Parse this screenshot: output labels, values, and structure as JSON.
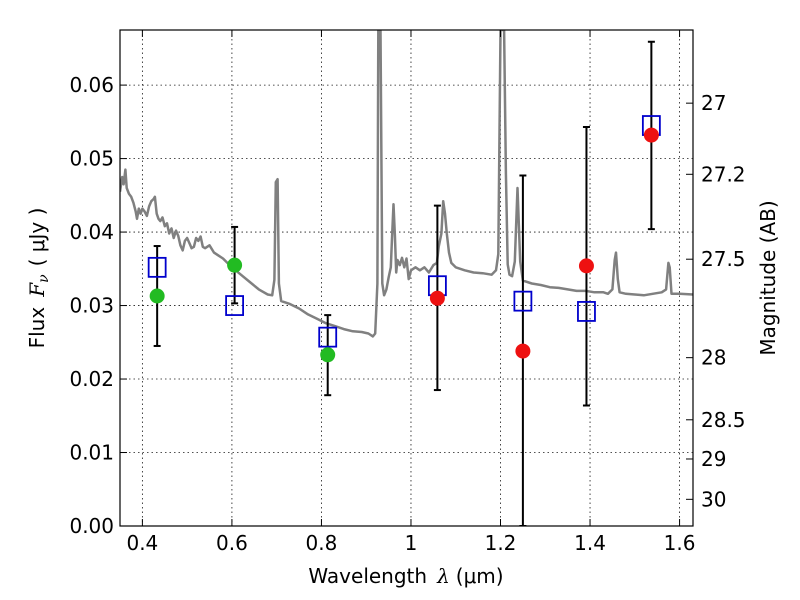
{
  "chart_data": {
    "type": "scatter",
    "xlabel": "Wavelength",
    "xlabel_symbol": "λ",
    "xlabel_unit": "(μm)",
    "ylabel": "Flux",
    "ylabel_symbol": "F",
    "ylabel_subscript": "ν",
    "ylabel_unit": "( μJy )",
    "ylabel_right": "Magnitude (AB)",
    "xlim": [
      0.35,
      1.63
    ],
    "ylim": [
      0.0,
      0.0675
    ],
    "x_ticks": [
      0.4,
      0.6,
      0.8,
      1.0,
      1.2,
      1.4,
      1.6
    ],
    "x_tick_labels": [
      "0.4",
      "0.6",
      "0.8",
      "1",
      "1.2",
      "1.4",
      "1.6"
    ],
    "y_ticks": [
      0.0,
      0.01,
      0.02,
      0.03,
      0.04,
      0.05,
      0.06
    ],
    "y_tick_labels": [
      "0.00",
      "0.01",
      "0.02",
      "0.03",
      "0.04",
      "0.05",
      "0.06"
    ],
    "right_ticks": [
      {
        "label": "27",
        "mag": 27.0
      },
      {
        "label": "27.2",
        "mag": 27.2
      },
      {
        "label": "27.5",
        "mag": 27.5
      },
      {
        "label": "28",
        "mag": 28.0
      },
      {
        "label": "28.5",
        "mag": 28.5
      },
      {
        "label": "29",
        "mag": 29.0
      },
      {
        "label": "30",
        "mag": 30.0
      }
    ],
    "grid": true,
    "colors": {
      "model": "#808080",
      "green": "#22bb22",
      "red": "#ee1111",
      "blue": "#0000cc",
      "errorbar": "#000000"
    },
    "observed": [
      {
        "x": 0.433,
        "y": 0.0313,
        "err_low": 0.0245,
        "err_high": 0.0381,
        "color": "green"
      },
      {
        "x": 0.606,
        "y": 0.0355,
        "err_low": 0.0303,
        "err_high": 0.0407,
        "color": "green"
      },
      {
        "x": 0.814,
        "y": 0.0233,
        "err_low": 0.0178,
        "err_high": 0.0287,
        "color": "green"
      },
      {
        "x": 1.059,
        "y": 0.031,
        "err_low": 0.0185,
        "err_high": 0.0436,
        "color": "red"
      },
      {
        "x": 1.25,
        "y": 0.0238,
        "err_low": 0.0,
        "err_high": 0.0477,
        "color": "red"
      },
      {
        "x": 1.392,
        "y": 0.0354,
        "err_low": 0.0164,
        "err_high": 0.0543,
        "color": "red"
      },
      {
        "x": 1.537,
        "y": 0.0532,
        "err_low": 0.0404,
        "err_high": 0.0659,
        "color": "red"
      }
    ],
    "model_photometry": [
      {
        "x": 0.433,
        "y": 0.0352
      },
      {
        "x": 0.606,
        "y": 0.03
      },
      {
        "x": 0.814,
        "y": 0.0257
      },
      {
        "x": 1.059,
        "y": 0.0327
      },
      {
        "x": 1.25,
        "y": 0.0306
      },
      {
        "x": 1.392,
        "y": 0.0292
      },
      {
        "x": 1.537,
        "y": 0.0545
      }
    ],
    "model_spectrum": [
      [
        0.35,
        0.0455
      ],
      [
        0.355,
        0.0475
      ],
      [
        0.358,
        0.0465
      ],
      [
        0.362,
        0.0485
      ],
      [
        0.365,
        0.046
      ],
      [
        0.37,
        0.0452
      ],
      [
        0.375,
        0.0448
      ],
      [
        0.38,
        0.044
      ],
      [
        0.385,
        0.0428
      ],
      [
        0.388,
        0.0418
      ],
      [
        0.392,
        0.0432
      ],
      [
        0.396,
        0.0425
      ],
      [
        0.4,
        0.0432
      ],
      [
        0.405,
        0.0428
      ],
      [
        0.41,
        0.0422
      ],
      [
        0.415,
        0.0435
      ],
      [
        0.42,
        0.0442
      ],
      [
        0.425,
        0.0445
      ],
      [
        0.428,
        0.0448
      ],
      [
        0.432,
        0.0425
      ],
      [
        0.436,
        0.0418
      ],
      [
        0.44,
        0.0415
      ],
      [
        0.445,
        0.042
      ],
      [
        0.45,
        0.0408
      ],
      [
        0.455,
        0.0412
      ],
      [
        0.46,
        0.0398
      ],
      [
        0.465,
        0.0405
      ],
      [
        0.47,
        0.0392
      ],
      [
        0.475,
        0.0402
      ],
      [
        0.48,
        0.0395
      ],
      [
        0.485,
        0.0382
      ],
      [
        0.49,
        0.0375
      ],
      [
        0.495,
        0.0388
      ],
      [
        0.5,
        0.0392
      ],
      [
        0.505,
        0.0385
      ],
      [
        0.51,
        0.0378
      ],
      [
        0.515,
        0.038
      ],
      [
        0.52,
        0.0392
      ],
      [
        0.525,
        0.0388
      ],
      [
        0.53,
        0.0394
      ],
      [
        0.535,
        0.038
      ],
      [
        0.54,
        0.0378
      ],
      [
        0.55,
        0.0382
      ],
      [
        0.56,
        0.0372
      ],
      [
        0.57,
        0.0368
      ],
      [
        0.58,
        0.0364
      ],
      [
        0.59,
        0.0358
      ],
      [
        0.6,
        0.0352
      ],
      [
        0.62,
        0.0342
      ],
      [
        0.64,
        0.0332
      ],
      [
        0.66,
        0.0322
      ],
      [
        0.68,
        0.0315
      ],
      [
        0.69,
        0.0314
      ],
      [
        0.695,
        0.0335
      ],
      [
        0.698,
        0.0468
      ],
      [
        0.702,
        0.0472
      ],
      [
        0.705,
        0.033
      ],
      [
        0.71,
        0.0306
      ],
      [
        0.73,
        0.0302
      ],
      [
        0.75,
        0.0296
      ],
      [
        0.77,
        0.0288
      ],
      [
        0.79,
        0.0282
      ],
      [
        0.81,
        0.0276
      ],
      [
        0.83,
        0.0272
      ],
      [
        0.85,
        0.0268
      ],
      [
        0.87,
        0.0265
      ],
      [
        0.89,
        0.0264
      ],
      [
        0.905,
        0.0262
      ],
      [
        0.915,
        0.0258
      ],
      [
        0.92,
        0.0262
      ],
      [
        0.925,
        0.033
      ],
      [
        0.927,
        0.0675
      ],
      [
        0.932,
        0.0675
      ],
      [
        0.936,
        0.033
      ],
      [
        0.94,
        0.0314
      ],
      [
        0.945,
        0.0322
      ],
      [
        0.95,
        0.0338
      ],
      [
        0.955,
        0.0352
      ],
      [
        0.958,
        0.0398
      ],
      [
        0.961,
        0.0438
      ],
      [
        0.964,
        0.0395
      ],
      [
        0.967,
        0.0345
      ],
      [
        0.97,
        0.0362
      ],
      [
        0.975,
        0.0355
      ],
      [
        0.98,
        0.0365
      ],
      [
        0.985,
        0.0352
      ],
      [
        0.99,
        0.0364
      ],
      [
        0.995,
        0.0336
      ],
      [
        1.0,
        0.0348
      ],
      [
        1.01,
        0.0352
      ],
      [
        1.02,
        0.0348
      ],
      [
        1.03,
        0.0352
      ],
      [
        1.04,
        0.0345
      ],
      [
        1.05,
        0.0355
      ],
      [
        1.058,
        0.0358
      ],
      [
        1.062,
        0.038
      ],
      [
        1.068,
        0.0398
      ],
      [
        1.072,
        0.0442
      ],
      [
        1.076,
        0.0425
      ],
      [
        1.08,
        0.0398
      ],
      [
        1.085,
        0.0372
      ],
      [
        1.09,
        0.0358
      ],
      [
        1.1,
        0.0352
      ],
      [
        1.12,
        0.0348
      ],
      [
        1.14,
        0.0345
      ],
      [
        1.16,
        0.0344
      ],
      [
        1.18,
        0.0342
      ],
      [
        1.19,
        0.0348
      ],
      [
        1.195,
        0.037
      ],
      [
        1.2,
        0.0675
      ],
      [
        1.208,
        0.0675
      ],
      [
        1.212,
        0.048
      ],
      [
        1.216,
        0.0356
      ],
      [
        1.22,
        0.0342
      ],
      [
        1.226,
        0.034
      ],
      [
        1.232,
        0.036
      ],
      [
        1.238,
        0.046
      ],
      [
        1.244,
        0.036
      ],
      [
        1.25,
        0.0334
      ],
      [
        1.27,
        0.033
      ],
      [
        1.29,
        0.0328
      ],
      [
        1.31,
        0.0325
      ],
      [
        1.33,
        0.0324
      ],
      [
        1.35,
        0.0322
      ],
      [
        1.37,
        0.032
      ],
      [
        1.39,
        0.032
      ],
      [
        1.41,
        0.0318
      ],
      [
        1.43,
        0.0318
      ],
      [
        1.44,
        0.0316
      ],
      [
        1.45,
        0.0322
      ],
      [
        1.455,
        0.0362
      ],
      [
        1.458,
        0.0372
      ],
      [
        1.462,
        0.0336
      ],
      [
        1.466,
        0.0318
      ],
      [
        1.48,
        0.0316
      ],
      [
        1.5,
        0.0315
      ],
      [
        1.52,
        0.0314
      ],
      [
        1.54,
        0.0316
      ],
      [
        1.56,
        0.0318
      ],
      [
        1.57,
        0.0322
      ],
      [
        1.575,
        0.0358
      ],
      [
        1.578,
        0.0352
      ],
      [
        1.582,
        0.0316
      ],
      [
        1.6,
        0.0316
      ],
      [
        1.63,
        0.0315
      ]
    ]
  }
}
